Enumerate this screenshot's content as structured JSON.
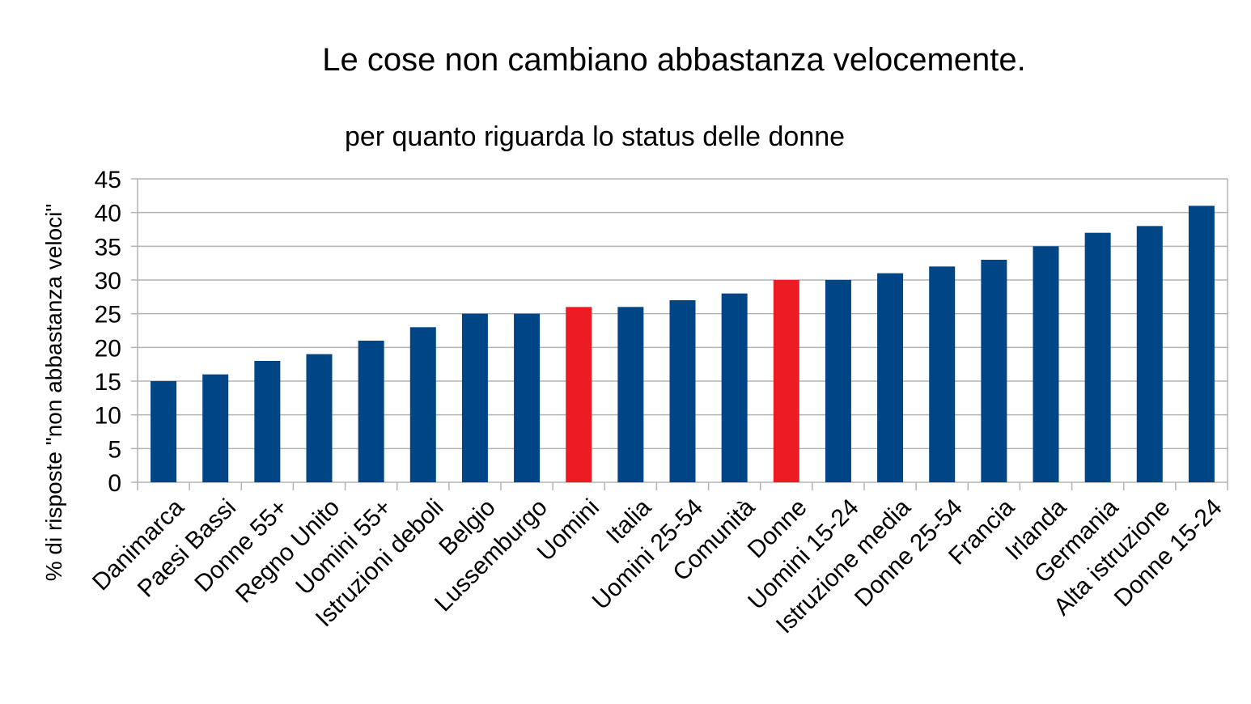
{
  "chart_data": {
    "type": "bar",
    "title": "Le cose non cambiano abbastanza velocemente.",
    "subtitle": "per quanto riguarda lo status delle donne",
    "xlabel": "",
    "ylabel": "% di risposte \"non abbastanza veloci\"",
    "ylim": [
      0,
      45
    ],
    "yticks": [
      0,
      5,
      10,
      15,
      20,
      25,
      30,
      35,
      40,
      45
    ],
    "grid": true,
    "categories": [
      "Danimarca",
      "Paesi Bassi",
      "Donne 55+",
      "Regno Unito",
      "Uomini 55+",
      "Istruzioni deboli",
      "Belgio",
      "Lussemburgo",
      "Uomini",
      "Italia",
      "Uomini 25-54",
      "Comunità",
      "Donne",
      "Uomini 15-24",
      "Istruzione media",
      "Donne 25-54",
      "Francia",
      "Irlanda",
      "Germania",
      "Alta istruzione",
      "Donne 15-24"
    ],
    "values": [
      15,
      16,
      18,
      19,
      21,
      23,
      25,
      25,
      26,
      26,
      27,
      28,
      30,
      30,
      31,
      32,
      33,
      35,
      37,
      38,
      41
    ],
    "highlighted": [
      "Uomini",
      "Donne"
    ],
    "colors": {
      "default": "#004586",
      "highlight": "#ed1c24",
      "grid": "#b3b3b3"
    }
  }
}
